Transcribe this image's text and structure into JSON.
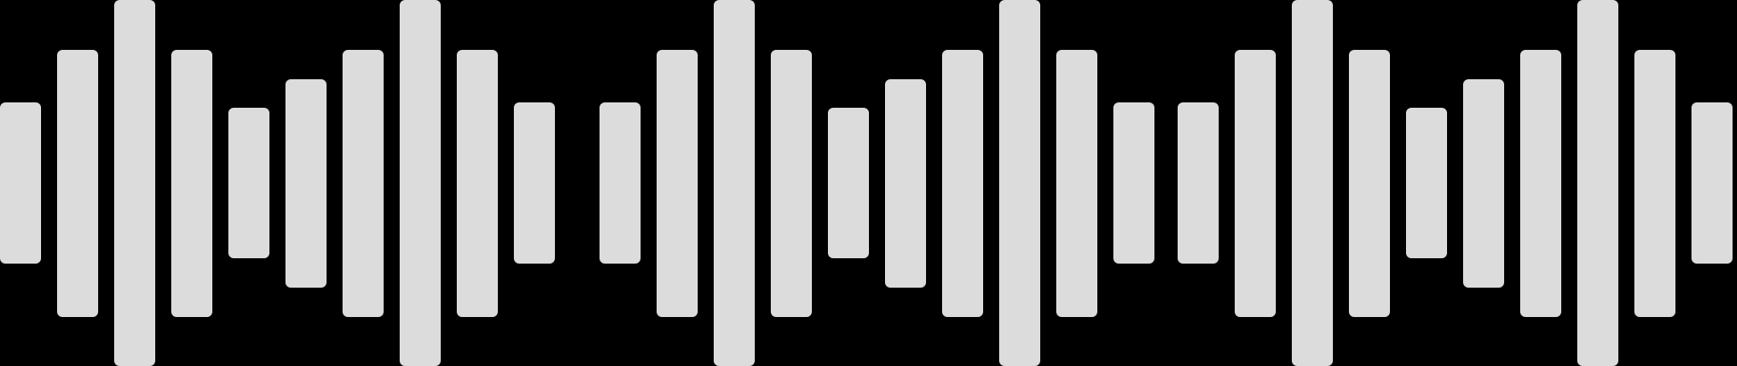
{
  "waveform": {
    "bar_color": "#dcdcdc",
    "background": "#000000",
    "levels": [
      0.44,
      0.73,
      1.0,
      0.73,
      0.41,
      0.57,
      0.73,
      1.0,
      0.73,
      0.44,
      0.44,
      0.73,
      1.0,
      0.73,
      0.41,
      0.57,
      0.73,
      1.0,
      0.73,
      0.44,
      0.44,
      0.73,
      1.0,
      0.73,
      0.41,
      0.57,
      0.73,
      1.0,
      0.73,
      0.44
    ]
  }
}
